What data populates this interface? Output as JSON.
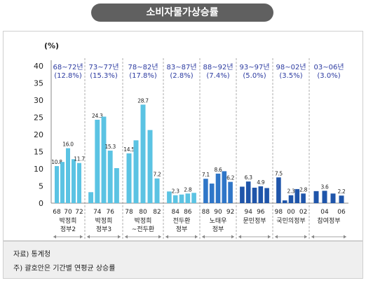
{
  "title": "소비자물가상승률",
  "chart_data": {
    "type": "bar",
    "ylabel": "(%)",
    "ylim": [
      0,
      40
    ],
    "yticks": [
      0,
      5,
      10,
      15,
      20,
      25,
      30,
      35,
      40
    ],
    "grid": false,
    "groups": [
      {
        "period": "68~72년",
        "avg": "(12.8%)",
        "color": "#5bc3e3",
        "years": [
          1968,
          1969,
          1970,
          1971,
          1972
        ],
        "values": [
          10.8,
          12.0,
          16.0,
          12.8,
          11.7
        ],
        "labels": [
          "10.8",
          null,
          "16.0",
          null,
          "11.7"
        ],
        "ticks": [
          "68",
          "70",
          "72"
        ],
        "tick_idx": [
          0,
          2,
          4
        ],
        "name": [
          "박정희",
          "정부2"
        ]
      },
      {
        "period": "73~77년",
        "avg": "(15.3%)",
        "color": "#5bc3e3",
        "years": [
          1973,
          1974,
          1975,
          1976,
          1977
        ],
        "values": [
          3.2,
          24.3,
          25.2,
          15.3,
          10.2
        ],
        "labels": [
          null,
          "24.3",
          null,
          "15.3",
          null
        ],
        "ticks": [
          "74",
          "76"
        ],
        "tick_idx": [
          1,
          3
        ],
        "name": [
          "박정희",
          "정부3"
        ]
      },
      {
        "period": "78~82년",
        "avg": "(17.8%)",
        "color": "#5bc3e3",
        "years": [
          1978,
          1979,
          1980,
          1981,
          1982
        ],
        "values": [
          14.5,
          18.3,
          28.7,
          21.3,
          7.2
        ],
        "labels": [
          "14.5",
          null,
          "28.7",
          null,
          "7.2"
        ],
        "ticks": [
          "78",
          "80",
          "82"
        ],
        "tick_idx": [
          0,
          2,
          4
        ],
        "name": [
          "박정희",
          "~전두환"
        ]
      },
      {
        "period": "83~87년",
        "avg": "(2.8%)",
        "color": "#5bc3e3",
        "years": [
          1983,
          1984,
          1985,
          1986,
          1987
        ],
        "values": [
          3.4,
          2.3,
          2.5,
          2.8,
          3.0
        ],
        "labels": [
          null,
          "2.3",
          null,
          "2.8",
          null
        ],
        "ticks": [
          "84",
          "86"
        ],
        "tick_idx": [
          1,
          3
        ],
        "name": [
          "전두환",
          "정부"
        ]
      },
      {
        "period": "88~92년",
        "avg": "(7.4%)",
        "color": "#2f76c8",
        "years": [
          1988,
          1989,
          1990,
          1991,
          1992
        ],
        "values": [
          7.1,
          5.7,
          8.6,
          9.3,
          6.2
        ],
        "labels": [
          "7.1",
          null,
          "8.6",
          null,
          "6.2"
        ],
        "ticks": [
          "88",
          "90",
          "92"
        ],
        "tick_idx": [
          0,
          2,
          4
        ],
        "name": [
          "노태우",
          "정부"
        ]
      },
      {
        "period": "93~97년",
        "avg": "(5.0%)",
        "color": "#1f55aa",
        "years": [
          1993,
          1994,
          1995,
          1996,
          1997
        ],
        "values": [
          4.8,
          6.3,
          4.5,
          4.9,
          4.4
        ],
        "labels": [
          null,
          "6.3",
          null,
          "4.9",
          null
        ],
        "ticks": [
          "94",
          "96"
        ],
        "tick_idx": [
          1,
          3
        ],
        "name": [
          "문민정부"
        ]
      },
      {
        "period": "98~02년",
        "avg": "(3.5%)",
        "color": "#1f55aa",
        "years": [
          1998,
          1999,
          2000,
          2001,
          2002
        ],
        "values": [
          7.5,
          0.8,
          2.3,
          4.1,
          2.8
        ],
        "labels": [
          "7.5",
          null,
          "2.3",
          null,
          "2.8"
        ],
        "ticks": [
          "98",
          "00",
          "02"
        ],
        "tick_idx": [
          0,
          2,
          4
        ],
        "name": [
          "국민의정부"
        ]
      },
      {
        "period": "03~06년",
        "avg": "(3.0%)",
        "color": "#1f55aa",
        "years": [
          2003,
          2004,
          2005,
          2006
        ],
        "values": [
          3.5,
          3.6,
          2.8,
          2.2
        ],
        "labels": [
          null,
          "3.6",
          null,
          "2.2"
        ],
        "ticks": [
          "04",
          "06"
        ],
        "tick_idx": [
          1,
          3
        ],
        "name": [
          "참여정부"
        ]
      }
    ]
  },
  "footer": {
    "source": "자료) 통계청",
    "note": "주) 괄호안은 기간별 연평균 상승률"
  }
}
